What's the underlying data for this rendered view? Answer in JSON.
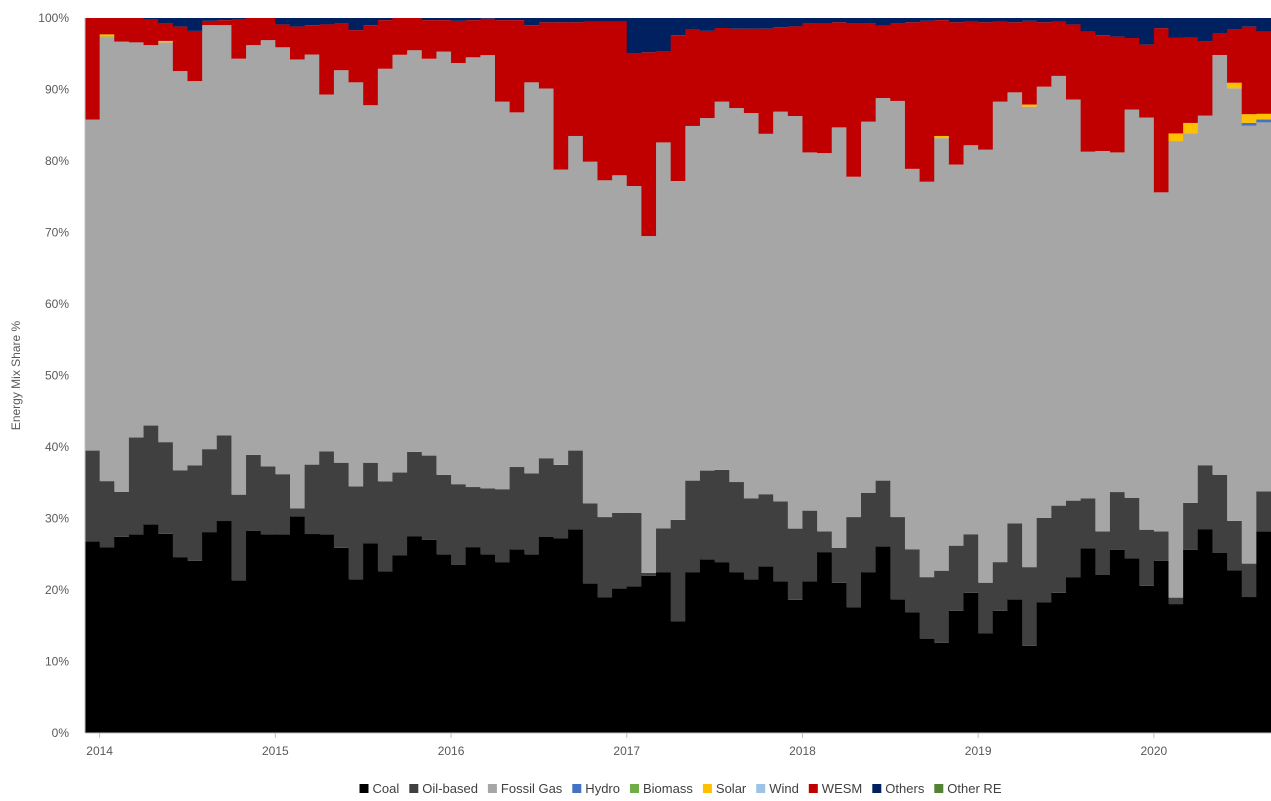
{
  "chart_data": {
    "type": "area",
    "stacked": true,
    "normalized": true,
    "ylabel": "Energy Mix Share %",
    "xlabel": "",
    "ylim": [
      0,
      100
    ],
    "y_ticks": [
      "0%",
      "10%",
      "20%",
      "30%",
      "40%",
      "50%",
      "60%",
      "70%",
      "80%",
      "90%",
      "100%"
    ],
    "x_ticks": [
      "2014",
      "2015",
      "2016",
      "2017",
      "2018",
      "2019",
      "2020"
    ],
    "x_start_year": 2014,
    "x_end_label": "2020-08",
    "grid": false,
    "legend_position": "bottom",
    "series": [
      {
        "name": "Coal",
        "color": "#000000"
      },
      {
        "name": "Oil-based",
        "color": "#404040"
      },
      {
        "name": "Fossil Gas",
        "color": "#a6a6a6"
      },
      {
        "name": "Hydro",
        "color": "#4472c4"
      },
      {
        "name": "Biomass",
        "color": "#70ad47"
      },
      {
        "name": "Solar",
        "color": "#ffc000"
      },
      {
        "name": "Wind",
        "color": "#9dc3e6"
      },
      {
        "name": "WESM",
        "color": "#c00000"
      },
      {
        "name": "Others",
        "color": "#002060"
      },
      {
        "name": "Other RE",
        "color": "#548235"
      }
    ],
    "months": [
      "2013-12",
      "2014-01",
      "2014-02",
      "2014-03",
      "2014-04",
      "2014-05",
      "2014-06",
      "2014-07",
      "2014-08",
      "2014-09",
      "2014-10",
      "2014-11",
      "2014-12",
      "2015-01",
      "2015-02",
      "2015-03",
      "2015-04",
      "2015-05",
      "2015-06",
      "2015-07",
      "2015-08",
      "2015-09",
      "2015-10",
      "2015-11",
      "2015-12",
      "2016-01",
      "2016-02",
      "2016-03",
      "2016-04",
      "2016-05",
      "2016-06",
      "2016-07",
      "2016-08",
      "2016-09",
      "2016-10",
      "2016-11",
      "2016-12",
      "2017-01",
      "2017-02",
      "2017-03",
      "2017-04",
      "2017-05",
      "2017-06",
      "2017-07",
      "2017-08",
      "2017-09",
      "2017-10",
      "2017-11",
      "2017-12",
      "2018-01",
      "2018-02",
      "2018-03",
      "2018-04",
      "2018-05",
      "2018-06",
      "2018-07",
      "2018-08",
      "2018-09",
      "2018-10",
      "2018-11",
      "2018-12",
      "2019-01",
      "2019-02",
      "2019-03",
      "2019-04",
      "2019-05",
      "2019-06",
      "2019-07",
      "2019-08",
      "2019-09",
      "2019-10",
      "2019-11",
      "2019-12",
      "2020-01",
      "2020-02",
      "2020-03",
      "2020-04",
      "2020-05",
      "2020-06",
      "2020-07",
      "2020-08"
    ],
    "values": {
      "Coal": [
        26.8,
        26,
        27.4,
        27.7,
        29.2,
        27.8,
        24.5,
        24,
        28.1,
        29.5,
        21.4,
        28.3,
        27.8,
        27.8,
        30.3,
        27.8,
        27.8,
        25.9,
        21.5,
        26.5,
        22.6,
        24.6,
        27.4,
        27,
        25,
        23.5,
        26,
        25,
        23.9,
        25.7,
        25,
        27.3,
        27.2,
        28.5,
        20.9,
        19,
        20.2,
        20.5,
        22,
        22.5,
        15.6,
        22.5,
        24.3,
        23.9,
        22.5,
        21.5,
        23.3,
        21.2,
        17.4,
        21.2,
        25.3,
        21,
        17.6,
        22.5,
        26.1,
        18.7,
        16.9,
        13.2,
        12.6,
        17.1,
        19.6,
        13.9,
        17.1,
        18.7,
        12.2,
        18.3,
        19.6,
        21.8,
        25.8,
        22.1,
        25.6,
        24.4,
        21,
        25.4,
        22,
        26.2,
        28.4,
        25.3,
        23.6,
        23.6,
        28.2
      ],
      "Oil-based": [
        12.7,
        9.3,
        6.3,
        13.5,
        13.8,
        12.8,
        12.1,
        13.3,
        11.6,
        11.9,
        12,
        10.6,
        9.5,
        8.4,
        1.1,
        9.7,
        11.6,
        11.9,
        13,
        11.3,
        12.6,
        11.5,
        11.8,
        11.8,
        11.1,
        11.3,
        8.4,
        9.2,
        10.2,
        11.5,
        11.3,
        10.9,
        10.3,
        11,
        11.2,
        11.2,
        10.6,
        10.3,
        0.4,
        6.1,
        14.2,
        12.8,
        12.4,
        12.9,
        12.6,
        11.3,
        10.1,
        11.2,
        9.3,
        9.9,
        2.9,
        4.9,
        12.6,
        11.1,
        9.2,
        11.5,
        8.8,
        8.6,
        10.1,
        9.1,
        8.2,
        7.1,
        6.8,
        10.6,
        11,
        11.8,
        12.2,
        10.7,
        7,
        6.1,
        8.1,
        8.5,
        8,
        4.3,
        1.1,
        6.7,
        8.9,
        11,
        7.2,
        5.8,
        5.6
      ],
      "Fossil Gas": [
        46.3,
        62.2,
        62.9,
        55.1,
        53.2,
        55.8,
        55.6,
        53.6,
        59.3,
        57.1,
        61.1,
        57.3,
        59.6,
        59.7,
        62.8,
        57.3,
        49.9,
        54.9,
        56.5,
        50,
        57.7,
        57.9,
        56,
        55.5,
        59.2,
        58.9,
        60.1,
        60.6,
        54.2,
        49.6,
        54.7,
        51.4,
        41.3,
        44,
        47.8,
        47.1,
        47.2,
        45.7,
        47.1,
        54,
        47.4,
        49.6,
        49.3,
        51.5,
        52.3,
        53.9,
        50.4,
        54.5,
        53.9,
        50.1,
        52.9,
        58.8,
        47.6,
        51.9,
        53.5,
        58.2,
        53.2,
        55.3,
        60.5,
        53.3,
        54.4,
        60.5,
        64.4,
        60.3,
        64.4,
        60.3,
        60.1,
        56.1,
        48.5,
        53.2,
        47.5,
        54.3,
        58.8,
        50,
        77.9,
        52.8,
        48.7,
        59,
        62.8,
        76,
        51.6
      ],
      "Hydro": [
        0,
        0,
        0,
        0,
        0,
        0,
        0,
        0,
        0,
        0,
        0,
        0,
        0,
        0,
        0,
        0,
        0,
        0,
        0,
        0,
        0,
        0,
        0,
        0,
        0,
        0,
        0,
        0,
        0,
        0,
        0,
        0,
        0,
        0,
        0,
        0,
        0,
        0,
        0,
        0,
        0,
        0,
        0,
        0,
        0,
        0,
        0,
        0,
        0,
        0,
        0,
        0,
        0,
        0,
        0,
        0,
        0,
        0,
        0,
        0,
        0,
        0,
        0,
        0,
        0,
        0,
        0,
        0,
        0,
        0,
        0,
        0,
        0,
        0,
        0,
        0,
        0,
        0,
        0,
        0.5,
        0.4
      ],
      "Biomass": [
        0,
        0.1,
        0,
        0,
        0,
        0,
        0,
        0,
        0,
        0,
        0,
        0,
        0,
        0,
        0,
        0,
        0,
        0,
        0,
        0,
        0,
        0,
        0,
        0,
        0,
        0,
        0,
        0,
        0,
        0,
        0,
        0,
        0,
        0,
        0,
        0,
        0,
        0,
        0,
        0,
        0,
        0,
        0,
        0,
        0,
        0,
        0,
        0,
        0,
        0,
        0,
        0,
        0,
        0,
        0,
        0,
        0,
        0,
        0,
        0,
        0,
        0,
        0,
        0,
        0,
        0,
        0,
        0,
        0,
        0,
        0,
        0,
        0,
        0,
        0,
        0,
        0,
        0,
        0,
        0,
        0
      ],
      "Solar": [
        0,
        0.3,
        0,
        0,
        0,
        0.2,
        0,
        0,
        0,
        0,
        0,
        0,
        0,
        0,
        0,
        0,
        0,
        0,
        0,
        0,
        0,
        0,
        0,
        0,
        0,
        0,
        0,
        0,
        0,
        0,
        0,
        0,
        0,
        0,
        0,
        0,
        0,
        0,
        0,
        0,
        0,
        0,
        0,
        0,
        0,
        0,
        0,
        0,
        0,
        0,
        0,
        0,
        0,
        0,
        0,
        0,
        0,
        0,
        0.3,
        0,
        0,
        0,
        0,
        0,
        0.3,
        0,
        0,
        0,
        0,
        0,
        0,
        0,
        0,
        0,
        1.3,
        1.5,
        0,
        0,
        0.8,
        1.5,
        0.8
      ],
      "Wind": [
        0,
        0,
        0,
        0,
        0,
        0,
        0,
        0,
        0,
        0,
        0,
        0,
        0,
        0,
        0,
        0,
        0,
        0,
        0,
        0,
        0,
        0,
        0,
        0,
        0,
        0,
        0,
        0,
        0,
        0,
        0,
        0,
        0,
        0,
        0,
        0,
        0,
        0,
        0,
        0,
        0,
        0,
        0,
        0,
        0,
        0,
        0,
        0,
        0,
        0,
        0,
        0,
        0,
        0,
        0,
        0,
        0,
        0,
        0,
        0,
        0,
        0,
        0,
        0,
        0,
        0,
        0,
        0,
        0,
        0,
        0,
        0,
        0,
        0,
        0,
        0,
        0,
        0,
        0,
        0,
        0
      ],
      "WESM": [
        14.2,
        2.3,
        3.3,
        3.4,
        3.6,
        2.4,
        6.2,
        7,
        0.6,
        0.7,
        5.5,
        3.8,
        3.1,
        3.2,
        4.6,
        4.1,
        9.8,
        6.5,
        7.3,
        11.2,
        6.8,
        5.1,
        4.5,
        5.4,
        4.4,
        5.9,
        5.2,
        5.1,
        11.4,
        12.9,
        8,
        9.2,
        20.6,
        15.9,
        19.6,
        22.2,
        21.5,
        18.5,
        25.7,
        12.7,
        20.4,
        13.5,
        12.2,
        10.3,
        11.1,
        11.8,
        14.7,
        11.8,
        11.7,
        18.1,
        18.2,
        14.7,
        21.5,
        13.7,
        10.1,
        10.8,
        20.5,
        22.5,
        16.2,
        19.9,
        17.3,
        17.8,
        11.2,
        9.8,
        11.7,
        9,
        7.6,
        10.5,
        16.8,
        16.2,
        16.2,
        10,
        10.4,
        24.2,
        16.3,
        12.2,
        10.3,
        3,
        7.8,
        15.2,
        11.5
      ],
      "Others": [
        0,
        0,
        0,
        0,
        0.2,
        0.8,
        1.2,
        1.8,
        0.4,
        0.3,
        0.2,
        0,
        0,
        0.9,
        1.2,
        1,
        0.9,
        0.8,
        1.7,
        1,
        0.3,
        0,
        0,
        0.3,
        0.3,
        0.4,
        0.3,
        0.1,
        0.3,
        0.3,
        1,
        0.6,
        0.6,
        0.6,
        0.5,
        0.5,
        0.5,
        5,
        4.8,
        4.7,
        2.4,
        1.6,
        1.8,
        1.4,
        1.5,
        1.5,
        1.5,
        1.3,
        1.1,
        0.7,
        0.7,
        0.6,
        0.7,
        0.8,
        1.1,
        0.8,
        0.6,
        0.4,
        0.3,
        0.6,
        0.5,
        0.6,
        0.5,
        0.6,
        0.4,
        0.6,
        0.5,
        0.9,
        1.9,
        2.4,
        2.6,
        2.8,
        3.8,
        1.5,
        3.4,
        2.8,
        3.3,
        2.2,
        1.6,
        1.5,
        1.9
      ],
      "Other RE": [
        0,
        0,
        0,
        0,
        0,
        0,
        0,
        0,
        0,
        0,
        0,
        0,
        0,
        0,
        0,
        0,
        0,
        0,
        0,
        0,
        0,
        0,
        0,
        0,
        0,
        0,
        0,
        0,
        0,
        0,
        0,
        0,
        0,
        0,
        0,
        0,
        0,
        0,
        0,
        0,
        0,
        0,
        0,
        0,
        0,
        0,
        0,
        0,
        0,
        0,
        0,
        0,
        0,
        0,
        0,
        0,
        0,
        0,
        0,
        0,
        0,
        0,
        0,
        0,
        0,
        0,
        0,
        0,
        0,
        0,
        0,
        0,
        0,
        0,
        0,
        0,
        0,
        0,
        0,
        0,
        0
      ]
    }
  }
}
